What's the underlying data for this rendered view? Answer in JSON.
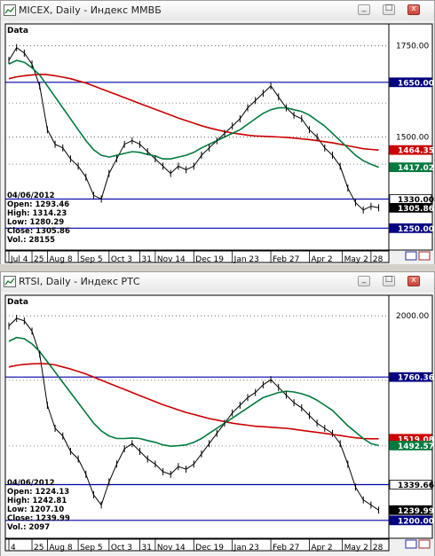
{
  "window_controls": {
    "minimize": "_",
    "maximize": "□",
    "close": "x"
  },
  "chart_data": [
    {
      "type": "line",
      "title": "MICEX, Daily - Индекс ММВБ",
      "corner_label": "Data",
      "x": [
        "2011-07-04",
        "2011-07-11",
        "2011-07-18",
        "2011-07-25",
        "2011-08-01",
        "2011-08-08",
        "2011-08-15",
        "2011-08-22",
        "2011-08-29",
        "2011-09-05",
        "2011-09-12",
        "2011-09-19",
        "2011-09-26",
        "2011-10-03",
        "2011-10-10",
        "2011-10-17",
        "2011-10-24",
        "2011-10-31",
        "2011-11-07",
        "2011-11-14",
        "2011-11-21",
        "2011-11-28",
        "2011-12-05",
        "2011-12-12",
        "2011-12-19",
        "2011-12-26",
        "2012-01-02",
        "2012-01-09",
        "2012-01-16",
        "2012-01-23",
        "2012-01-30",
        "2012-02-06",
        "2012-02-13",
        "2012-02-20",
        "2012-02-27",
        "2012-03-05",
        "2012-03-12",
        "2012-03-19",
        "2012-03-26",
        "2012-04-02",
        "2012-04-09",
        "2012-04-16",
        "2012-04-23",
        "2012-04-30",
        "2012-05-07",
        "2012-05-14",
        "2012-05-21",
        "2012-05-28",
        "2012-06-04"
      ],
      "x_ticks": [
        "Jul 4",
        "25",
        "Aug 8",
        "Sep 5",
        "Oct 3",
        "31",
        "Nov 14",
        "Dec 19",
        "Jan 23",
        "Feb 27",
        "Apr 2",
        "May 2",
        "28"
      ],
      "x_tick_dates": [
        "2011-07-04",
        "2011-07-25",
        "2011-08-08",
        "2011-09-05",
        "2011-10-03",
        "2011-10-31",
        "2011-11-14",
        "2011-12-19",
        "2012-01-23",
        "2012-02-27",
        "2012-04-02",
        "2012-05-02",
        "2012-05-28"
      ],
      "series": [
        {
          "name": "",
          "color": "#000000",
          "values": [
            1710,
            1745,
            1730,
            1700,
            1640,
            1520,
            1480,
            1470,
            1440,
            1420,
            1390,
            1340,
            1330,
            1400,
            1440,
            1480,
            1490,
            1480,
            1460,
            1440,
            1420,
            1400,
            1420,
            1410,
            1420,
            1450,
            1470,
            1490,
            1510,
            1530,
            1550,
            1580,
            1600,
            1620,
            1640,
            1610,
            1580,
            1560,
            1550,
            1520,
            1500,
            1470,
            1450,
            1420,
            1360,
            1320,
            1300,
            1310,
            1305.86
          ]
        },
        {
          "name": "",
          "color": "#cc0000",
          "values": [
            1660,
            1665,
            1668,
            1670,
            1672,
            1671,
            1668,
            1664,
            1660,
            1654,
            1648,
            1640,
            1632,
            1624,
            1616,
            1608,
            1600,
            1592,
            1584,
            1576,
            1568,
            1560,
            1552,
            1545,
            1538,
            1531,
            1525,
            1520,
            1515,
            1511,
            1508,
            1505,
            1503,
            1502,
            1501,
            1500,
            1499,
            1497,
            1495,
            1493,
            1490,
            1487,
            1484,
            1480,
            1476,
            1472,
            1468,
            1466,
            1464.35
          ]
        },
        {
          "name": "",
          "color": "#007a3d",
          "values": [
            1700,
            1710,
            1705,
            1690,
            1670,
            1640,
            1610,
            1580,
            1550,
            1520,
            1490,
            1465,
            1450,
            1445,
            1450,
            1455,
            1460,
            1458,
            1452,
            1448,
            1440,
            1440,
            1445,
            1450,
            1458,
            1470,
            1480,
            1490,
            1500,
            1510,
            1520,
            1535,
            1550,
            1565,
            1575,
            1580,
            1580,
            1575,
            1570,
            1560,
            1545,
            1530,
            1510,
            1490,
            1470,
            1450,
            1435,
            1425,
            1417.02
          ]
        }
      ],
      "hlines": [
        {
          "value": 1650,
          "color": "#0000aa"
        },
        {
          "value": 1330,
          "color": "#0000aa"
        },
        {
          "value": 1250,
          "color": "#0000aa"
        }
      ],
      "y_ticks": [
        "1750.00",
        "1500.00"
      ],
      "y_tick_values": [
        1750,
        1500
      ],
      "ylim": [
        1190,
        1810
      ],
      "price_labels": [
        {
          "value": 1650,
          "text": "1650.00",
          "bg": "#000080",
          "fg": "#ffffff"
        },
        {
          "value": 1464.35,
          "text": "1464.35",
          "bg": "#cc0000",
          "fg": "#ffffff"
        },
        {
          "value": 1417.02,
          "text": "1417.02",
          "bg": "#007a3d",
          "fg": "#ffffff"
        },
        {
          "value": 1330,
          "text": "1330.00",
          "bg": "#ffffff",
          "fg": "#000000"
        },
        {
          "value": 1305.86,
          "text": "1305.86",
          "bg": "#000000",
          "fg": "#ffffff"
        },
        {
          "value": 1250,
          "text": "1250.00",
          "bg": "#000080",
          "fg": "#ffffff"
        }
      ],
      "info": [
        "04/06/2012",
        "Open: 1293.46",
        "High: 1314.23",
        "Low: 1280.29",
        "Close: 1305.86",
        "Vol.: 28155"
      ]
    },
    {
      "type": "line",
      "title": "RTSI, Daily - Индекс РТС",
      "corner_label": "Data",
      "x": [
        "2011-07-04",
        "2011-07-11",
        "2011-07-18",
        "2011-07-25",
        "2011-08-01",
        "2011-08-08",
        "2011-08-15",
        "2011-08-22",
        "2011-08-29",
        "2011-09-05",
        "2011-09-12",
        "2011-09-19",
        "2011-09-26",
        "2011-10-03",
        "2011-10-10",
        "2011-10-17",
        "2011-10-24",
        "2011-10-31",
        "2011-11-07",
        "2011-11-14",
        "2011-11-21",
        "2011-11-28",
        "2011-12-05",
        "2011-12-12",
        "2011-12-19",
        "2011-12-26",
        "2012-01-02",
        "2012-01-09",
        "2012-01-16",
        "2012-01-23",
        "2012-01-30",
        "2012-02-06",
        "2012-02-13",
        "2012-02-20",
        "2012-02-27",
        "2012-03-05",
        "2012-03-12",
        "2012-03-19",
        "2012-03-26",
        "2012-04-02",
        "2012-04-09",
        "2012-04-16",
        "2012-04-23",
        "2012-04-30",
        "2012-05-07",
        "2012-05-14",
        "2012-05-21",
        "2012-05-28",
        "2012-06-04"
      ],
      "x_ticks": [
        "4",
        "25",
        "Aug 8",
        "Sep 5",
        "Oct 3",
        "31",
        "Nov 14",
        "Dec 19",
        "Jan 23",
        "Feb 27",
        "Apr 2",
        "May 2",
        "28"
      ],
      "x_tick_dates": [
        "2011-07-04",
        "2011-07-25",
        "2011-08-08",
        "2011-09-05",
        "2011-10-03",
        "2011-10-31",
        "2011-11-14",
        "2011-12-19",
        "2012-01-23",
        "2012-02-27",
        "2012-04-02",
        "2012-05-02",
        "2012-05-28"
      ],
      "series": [
        {
          "name": "",
          "color": "#000000",
          "values": [
            1960,
            1990,
            1980,
            1940,
            1850,
            1650,
            1560,
            1530,
            1470,
            1440,
            1380,
            1300,
            1260,
            1350,
            1420,
            1480,
            1500,
            1470,
            1440,
            1420,
            1390,
            1380,
            1410,
            1400,
            1420,
            1460,
            1500,
            1540,
            1580,
            1620,
            1650,
            1680,
            1700,
            1730,
            1750,
            1720,
            1690,
            1660,
            1640,
            1610,
            1580,
            1560,
            1540,
            1500,
            1420,
            1330,
            1280,
            1260,
            1239.99
          ]
        },
        {
          "name": "",
          "color": "#cc0000",
          "values": [
            1800,
            1806,
            1810,
            1812,
            1813,
            1812,
            1808,
            1800,
            1792,
            1782,
            1772,
            1760,
            1748,
            1736,
            1724,
            1712,
            1700,
            1688,
            1676,
            1664,
            1652,
            1642,
            1632,
            1622,
            1614,
            1606,
            1598,
            1592,
            1586,
            1580,
            1576,
            1572,
            1568,
            1566,
            1564,
            1562,
            1560,
            1556,
            1552,
            1548,
            1544,
            1540,
            1536,
            1532,
            1527,
            1523,
            1520,
            1519,
            1519.08
          ]
        },
        {
          "name": "",
          "color": "#007a3d",
          "values": [
            1900,
            1915,
            1910,
            1890,
            1860,
            1820,
            1780,
            1740,
            1700,
            1660,
            1620,
            1580,
            1550,
            1530,
            1520,
            1520,
            1522,
            1520,
            1512,
            1505,
            1495,
            1490,
            1492,
            1495,
            1505,
            1520,
            1540,
            1560,
            1580,
            1600,
            1620,
            1640,
            1660,
            1680,
            1690,
            1700,
            1705,
            1702,
            1695,
            1685,
            1670,
            1650,
            1630,
            1600,
            1570,
            1545,
            1520,
            1500,
            1492.57
          ]
        }
      ],
      "hlines": [
        {
          "value": 1760.36,
          "color": "#0000aa"
        },
        {
          "value": 1339.66,
          "color": "#0000aa"
        },
        {
          "value": 1200,
          "color": "#0000aa"
        }
      ],
      "y_ticks": [
        "2000.00"
      ],
      "y_tick_values": [
        2000
      ],
      "ylim": [
        1130,
        2080
      ],
      "price_labels": [
        {
          "value": 1760.36,
          "text": "1760.36",
          "bg": "#000080",
          "fg": "#ffffff"
        },
        {
          "value": 1519.08,
          "text": "1519.08",
          "bg": "#cc0000",
          "fg": "#ffffff"
        },
        {
          "value": 1492.57,
          "text": "1492.57",
          "bg": "#007a3d",
          "fg": "#ffffff"
        },
        {
          "value": 1339.66,
          "text": "1339.66",
          "bg": "#ffffff",
          "fg": "#000000"
        },
        {
          "value": 1239.99,
          "text": "1239.99",
          "bg": "#000000",
          "fg": "#ffffff"
        },
        {
          "value": 1200,
          "text": "1200.00",
          "bg": "#000080",
          "fg": "#ffffff"
        }
      ],
      "info": [
        "04/06/2012",
        "Open: 1224.13",
        "High: 1242.81",
        "Low: 1207.10",
        "Close: 1239.99",
        "Vol.: 2097"
      ]
    }
  ]
}
